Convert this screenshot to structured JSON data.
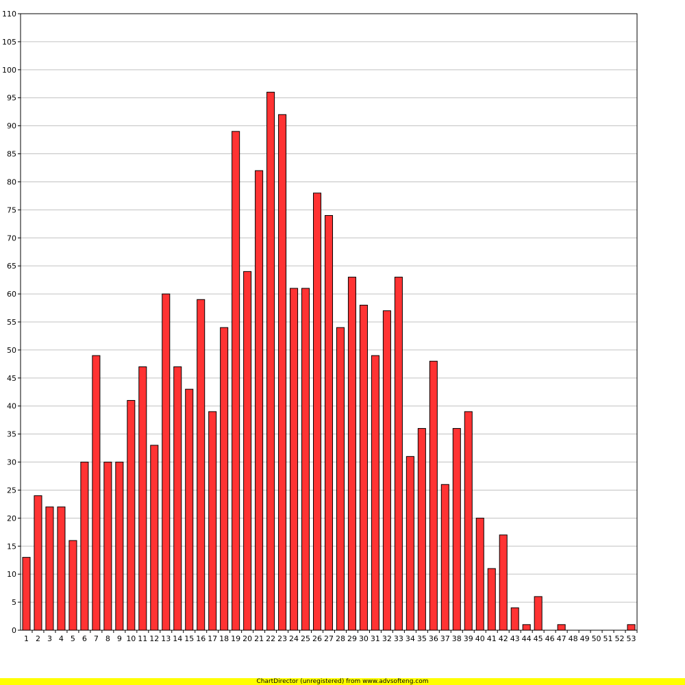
{
  "chart_data": {
    "type": "bar",
    "categories": [
      "1",
      "2",
      "3",
      "4",
      "5",
      "6",
      "7",
      "8",
      "9",
      "10",
      "11",
      "12",
      "13",
      "14",
      "15",
      "16",
      "17",
      "18",
      "19",
      "20",
      "21",
      "22",
      "23",
      "24",
      "25",
      "26",
      "27",
      "28",
      "29",
      "30",
      "31",
      "32",
      "33",
      "34",
      "35",
      "36",
      "37",
      "38",
      "39",
      "40",
      "41",
      "42",
      "43",
      "44",
      "45",
      "46",
      "47",
      "48",
      "49",
      "50",
      "51",
      "52",
      "53"
    ],
    "values": [
      13,
      24,
      22,
      22,
      16,
      30,
      49,
      30,
      30,
      41,
      47,
      33,
      60,
      47,
      43,
      59,
      39,
      54,
      89,
      64,
      82,
      96,
      92,
      61,
      61,
      78,
      74,
      54,
      63,
      58,
      49,
      57,
      63,
      31,
      36,
      48,
      26,
      36,
      39,
      20,
      11,
      17,
      4,
      1,
      6,
      0,
      1,
      0,
      0,
      0,
      0,
      0,
      1
    ],
    "ylim": [
      0,
      110
    ],
    "ytick_step": 5,
    "grid": true,
    "legend": "none",
    "bar_color": "#ff3333",
    "bar_edge_color": "#000000",
    "grid_color": "#c0c0c0"
  },
  "footer": {
    "text": "ChartDirector (unregistered) from www.advsofteng.com",
    "background": "#ffff00"
  }
}
